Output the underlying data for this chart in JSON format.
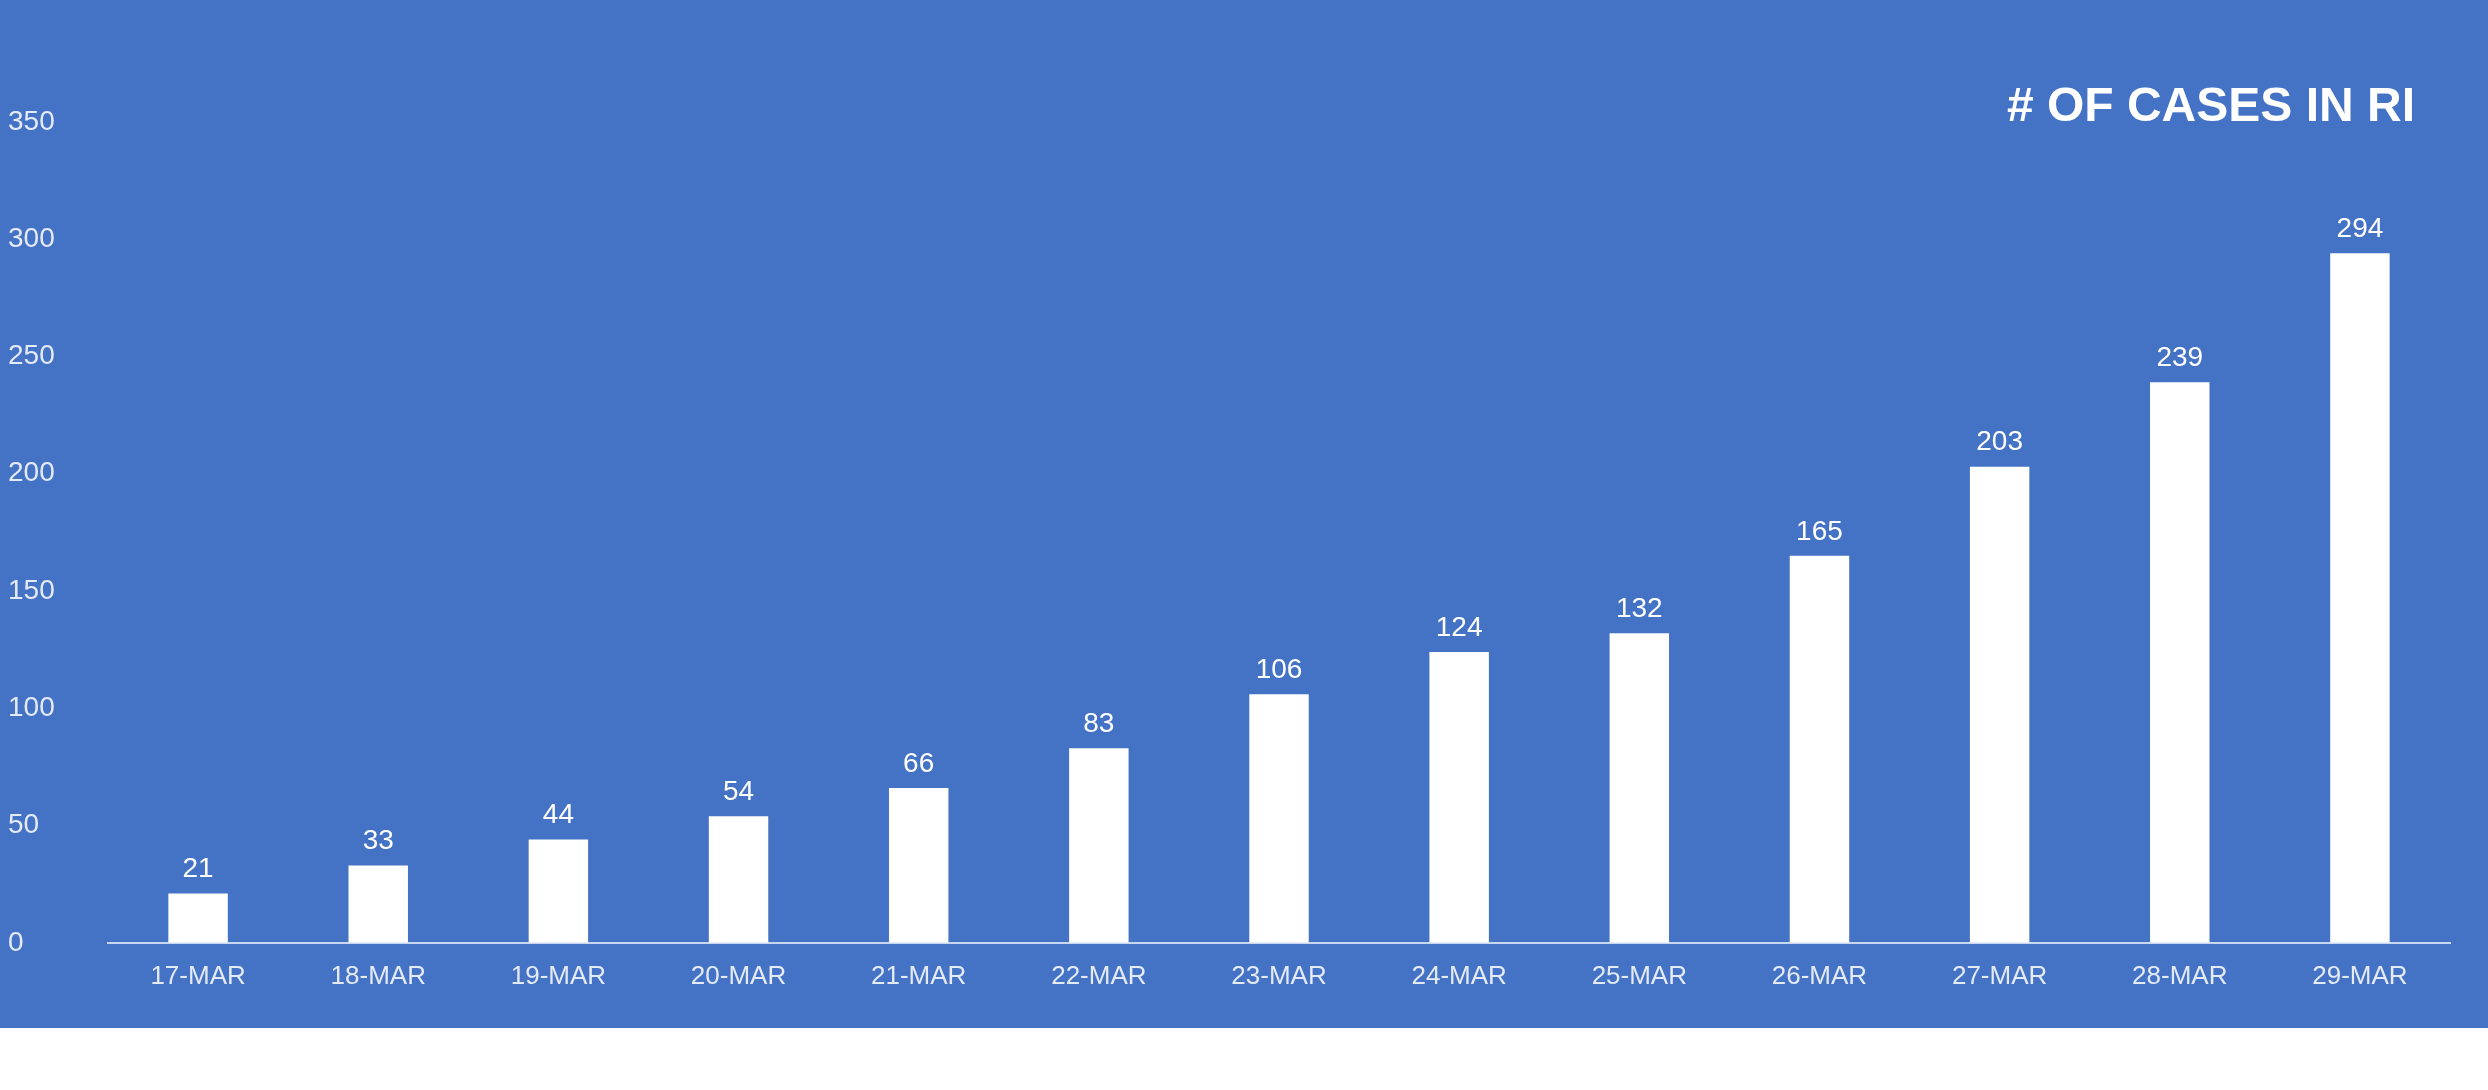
{
  "chart_data": {
    "type": "bar",
    "title": "# OF CASES IN RI",
    "categories": [
      "17-MAR",
      "18-MAR",
      "19-MAR",
      "20-MAR",
      "21-MAR",
      "22-MAR",
      "23-MAR",
      "24-MAR",
      "25-MAR",
      "26-MAR",
      "27-MAR",
      "28-MAR",
      "29-MAR"
    ],
    "values": [
      21,
      33,
      44,
      54,
      66,
      83,
      106,
      124,
      132,
      165,
      203,
      239,
      294
    ],
    "color": "#ffffff",
    "ylim": [
      0,
      350
    ],
    "yticks": [
      0,
      50,
      100,
      150,
      200,
      250,
      300,
      350
    ],
    "grid": false,
    "legend": false,
    "data_labels": true
  }
}
